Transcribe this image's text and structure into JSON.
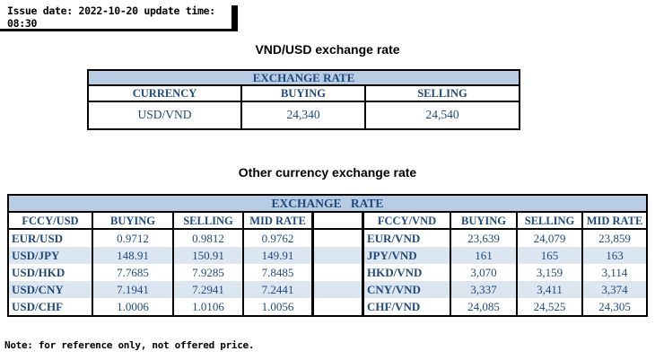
{
  "meta": {
    "issue_line": "Issue date: 2022-10-20 update time: 08:30",
    "note": "Note: for reference only, not offered price."
  },
  "colors": {
    "table_title_bg": "#b8cce4",
    "stripe_bg": "#dce6f1",
    "table_text": "#1f497d",
    "border": "#000000"
  },
  "table1": {
    "section_title": "VND/USD exchange rate",
    "banner": "EXCHANGE RATE",
    "columns": [
      "CURRENCY",
      "BUYING",
      "SELLING"
    ],
    "row": {
      "currency": "USD/VND",
      "buying": "24,340",
      "selling": "24,540"
    }
  },
  "table2": {
    "section_title": "Other currency exchange rate",
    "banner": "EXCHANGE RATE",
    "left_columns": [
      "FCCY/USD",
      "BUYING",
      "SELLING",
      "MID RATE"
    ],
    "right_columns": [
      "FCCY/VND",
      "BUYING",
      "SELLING",
      "MID RATE"
    ],
    "left_rows": [
      {
        "pair": "EUR/USD",
        "buying": "0.9712",
        "selling": "0.9812",
        "mid": "0.9762"
      },
      {
        "pair": "USD/JPY",
        "buying": "148.91",
        "selling": "150.91",
        "mid": "149.91"
      },
      {
        "pair": "USD/HKD",
        "buying": "7.7685",
        "selling": "7.9285",
        "mid": "7.8485"
      },
      {
        "pair": "USD/CNY",
        "buying": "7.1941",
        "selling": "7.2941",
        "mid": "7.2441"
      },
      {
        "pair": "USD/CHF",
        "buying": "1.0006",
        "selling": "1.0106",
        "mid": "1.0056"
      }
    ],
    "right_rows": [
      {
        "pair": "EUR/VND",
        "buying": "23,639",
        "selling": "24,079",
        "mid": "23,859"
      },
      {
        "pair": "JPY/VND",
        "buying": "161",
        "selling": "165",
        "mid": "163"
      },
      {
        "pair": "HKD/VND",
        "buying": "3,070",
        "selling": "3,159",
        "mid": "3,114"
      },
      {
        "pair": "CNY/VND",
        "buying": "3,337",
        "selling": "3,411",
        "mid": "3,374"
      },
      {
        "pair": "CHF/VND",
        "buying": "24,085",
        "selling": "24,525",
        "mid": "24,305"
      }
    ]
  }
}
